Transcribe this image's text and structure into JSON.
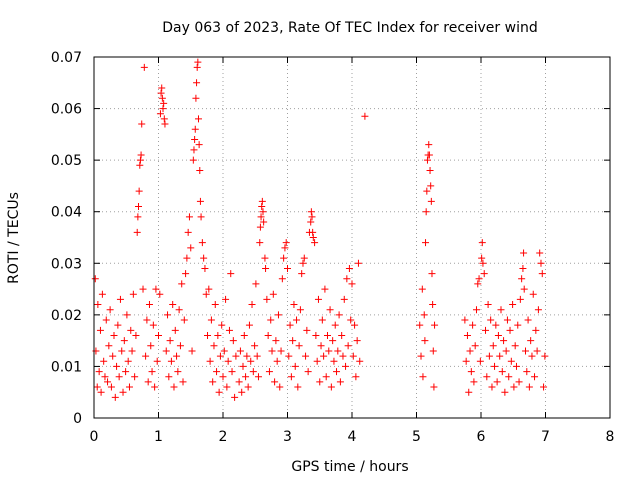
{
  "chart_data": {
    "type": "scatter",
    "title": "Day 063 of 2023, Rate Of TEC Index for receiver wind",
    "xlabel": "GPS time / hours",
    "ylabel": "ROTI / TECUs",
    "xlim": [
      0,
      8
    ],
    "ylim": [
      0,
      0.07
    ],
    "xticks": [
      "0",
      "1",
      "2",
      "3",
      "4",
      "5",
      "6",
      "7",
      "8"
    ],
    "yticks": [
      "0",
      "0.01",
      "0.02",
      "0.03",
      "0.04",
      "0.05",
      "0.06",
      "0.07"
    ],
    "grid": true,
    "marker": "plus",
    "color": "#ff0000",
    "series": [
      {
        "points": [
          [
            0.02,
            0.027
          ],
          [
            0.03,
            0.013
          ],
          [
            0.05,
            0.006
          ],
          [
            0.06,
            0.022
          ],
          [
            0.08,
            0.009
          ],
          [
            0.1,
            0.017
          ],
          [
            0.11,
            0.005
          ],
          [
            0.13,
            0.024
          ],
          [
            0.15,
            0.011
          ],
          [
            0.17,
            0.008
          ],
          [
            0.19,
            0.019
          ],
          [
            0.21,
            0.007
          ],
          [
            0.23,
            0.014
          ],
          [
            0.25,
            0.021
          ],
          [
            0.27,
            0.006
          ],
          [
            0.29,
            0.012
          ],
          [
            0.31,
            0.016
          ],
          [
            0.33,
            0.004
          ],
          [
            0.35,
            0.01
          ],
          [
            0.37,
            0.018
          ],
          [
            0.39,
            0.008
          ],
          [
            0.41,
            0.023
          ],
          [
            0.43,
            0.013
          ],
          [
            0.45,
            0.005
          ],
          [
            0.47,
            0.015
          ],
          [
            0.49,
            0.009
          ],
          [
            0.51,
            0.02
          ],
          [
            0.53,
            0.011
          ],
          [
            0.55,
            0.006
          ],
          [
            0.57,
            0.017
          ],
          [
            0.59,
            0.013
          ],
          [
            0.61,
            0.024
          ],
          [
            0.63,
            0.008
          ],
          [
            0.65,
            0.016
          ],
          [
            0.67,
            0.036
          ],
          [
            0.68,
            0.039
          ],
          [
            0.69,
            0.041
          ],
          [
            0.7,
            0.044
          ],
          [
            0.71,
            0.049
          ],
          [
            0.72,
            0.05
          ],
          [
            0.73,
            0.051
          ],
          [
            0.74,
            0.057
          ],
          [
            0.76,
            0.025
          ],
          [
            0.78,
            0.068
          ],
          [
            0.8,
            0.012
          ],
          [
            0.82,
            0.019
          ],
          [
            0.84,
            0.007
          ],
          [
            0.86,
            0.022
          ],
          [
            0.88,
            0.014
          ],
          [
            0.9,
            0.009
          ],
          [
            0.92,
            0.018
          ],
          [
            0.94,
            0.006
          ],
          [
            0.96,
            0.025
          ],
          [
            0.98,
            0.011
          ],
          [
            1.0,
            0.016
          ],
          [
            1.02,
            0.024
          ],
          [
            1.03,
            0.059
          ],
          [
            1.04,
            0.063
          ],
          [
            1.05,
            0.064
          ],
          [
            1.06,
            0.062
          ],
          [
            1.07,
            0.06
          ],
          [
            1.08,
            0.061
          ],
          [
            1.09,
            0.058
          ],
          [
            1.1,
            0.057
          ],
          [
            1.12,
            0.013
          ],
          [
            1.14,
            0.02
          ],
          [
            1.16,
            0.008
          ],
          [
            1.18,
            0.015
          ],
          [
            1.2,
            0.011
          ],
          [
            1.22,
            0.022
          ],
          [
            1.24,
            0.006
          ],
          [
            1.26,
            0.017
          ],
          [
            1.28,
            0.012
          ],
          [
            1.3,
            0.009
          ],
          [
            1.32,
            0.021
          ],
          [
            1.34,
            0.014
          ],
          [
            1.36,
            0.026
          ],
          [
            1.38,
            0.007
          ],
          [
            1.4,
            0.019
          ],
          [
            1.42,
            0.028
          ],
          [
            1.44,
            0.031
          ],
          [
            1.46,
            0.036
          ],
          [
            1.48,
            0.039
          ],
          [
            1.5,
            0.033
          ],
          [
            1.52,
            0.013
          ],
          [
            1.54,
            0.05
          ],
          [
            1.55,
            0.052
          ],
          [
            1.56,
            0.054
          ],
          [
            1.57,
            0.056
          ],
          [
            1.58,
            0.062
          ],
          [
            1.59,
            0.065
          ],
          [
            1.6,
            0.068
          ],
          [
            1.61,
            0.069
          ],
          [
            1.62,
            0.058
          ],
          [
            1.63,
            0.053
          ],
          [
            1.64,
            0.048
          ],
          [
            1.65,
            0.042
          ],
          [
            1.66,
            0.039
          ],
          [
            1.68,
            0.034
          ],
          [
            1.7,
            0.031
          ],
          [
            1.72,
            0.029
          ],
          [
            1.74,
            0.024
          ],
          [
            1.76,
            0.016
          ],
          [
            1.78,
            0.025
          ],
          [
            1.8,
            0.011
          ],
          [
            1.82,
            0.019
          ],
          [
            1.84,
            0.007
          ],
          [
            1.86,
            0.014
          ],
          [
            1.88,
            0.022
          ],
          [
            1.9,
            0.009
          ],
          [
            1.92,
            0.016
          ],
          [
            1.94,
            0.005
          ],
          [
            1.96,
            0.012
          ],
          [
            1.98,
            0.018
          ],
          [
            2.0,
            0.008
          ],
          [
            2.02,
            0.013
          ],
          [
            2.04,
            0.023
          ],
          [
            2.06,
            0.006
          ],
          [
            2.08,
            0.011
          ],
          [
            2.1,
            0.017
          ],
          [
            2.12,
            0.028
          ],
          [
            2.14,
            0.009
          ],
          [
            2.16,
            0.015
          ],
          [
            2.18,
            0.004
          ],
          [
            2.2,
            0.012
          ],
          [
            2.25,
            0.007
          ],
          [
            2.27,
            0.013
          ],
          [
            2.29,
            0.005
          ],
          [
            2.31,
            0.01
          ],
          [
            2.33,
            0.016
          ],
          [
            2.35,
            0.008
          ],
          [
            2.37,
            0.012
          ],
          [
            2.39,
            0.006
          ],
          [
            2.41,
            0.018
          ],
          [
            2.43,
            0.011
          ],
          [
            2.45,
            0.022
          ],
          [
            2.47,
            0.009
          ],
          [
            2.49,
            0.014
          ],
          [
            2.51,
            0.026
          ],
          [
            2.53,
            0.012
          ],
          [
            2.55,
            0.008
          ],
          [
            2.57,
            0.034
          ],
          [
            2.58,
            0.037
          ],
          [
            2.59,
            0.039
          ],
          [
            2.6,
            0.041
          ],
          [
            2.61,
            0.042
          ],
          [
            2.62,
            0.04
          ],
          [
            2.63,
            0.038
          ],
          [
            2.65,
            0.031
          ],
          [
            2.66,
            0.029
          ],
          [
            2.68,
            0.023
          ],
          [
            2.7,
            0.016
          ],
          [
            2.72,
            0.009
          ],
          [
            2.74,
            0.019
          ],
          [
            2.76,
            0.013
          ],
          [
            2.78,
            0.024
          ],
          [
            2.8,
            0.007
          ],
          [
            2.82,
            0.015
          ],
          [
            2.84,
            0.011
          ],
          [
            2.86,
            0.02
          ],
          [
            2.88,
            0.006
          ],
          [
            2.9,
            0.013
          ],
          [
            2.92,
            0.027
          ],
          [
            2.94,
            0.031
          ],
          [
            2.96,
            0.033
          ],
          [
            2.98,
            0.034
          ],
          [
            3.0,
            0.029
          ],
          [
            3.02,
            0.012
          ],
          [
            3.04,
            0.018
          ],
          [
            3.06,
            0.008
          ],
          [
            3.08,
            0.015
          ],
          [
            3.1,
            0.022
          ],
          [
            3.12,
            0.01
          ],
          [
            3.14,
            0.019
          ],
          [
            3.16,
            0.006
          ],
          [
            3.18,
            0.014
          ],
          [
            3.2,
            0.021
          ],
          [
            3.22,
            0.028
          ],
          [
            3.24,
            0.03
          ],
          [
            3.26,
            0.031
          ],
          [
            3.28,
            0.012
          ],
          [
            3.3,
            0.017
          ],
          [
            3.32,
            0.009
          ],
          [
            3.34,
            0.036
          ],
          [
            3.36,
            0.038
          ],
          [
            3.37,
            0.04
          ],
          [
            3.38,
            0.039
          ],
          [
            3.39,
            0.036
          ],
          [
            3.4,
            0.035
          ],
          [
            3.42,
            0.034
          ],
          [
            3.44,
            0.016
          ],
          [
            3.46,
            0.011
          ],
          [
            3.48,
            0.023
          ],
          [
            3.5,
            0.007
          ],
          [
            3.52,
            0.014
          ],
          [
            3.54,
            0.019
          ],
          [
            3.56,
            0.012
          ],
          [
            3.58,
            0.025
          ],
          [
            3.6,
            0.008
          ],
          [
            3.62,
            0.016
          ],
          [
            3.64,
            0.013
          ],
          [
            3.66,
            0.021
          ],
          [
            3.68,
            0.006
          ],
          [
            3.7,
            0.015
          ],
          [
            3.72,
            0.011
          ],
          [
            3.74,
            0.018
          ],
          [
            3.76,
            0.009
          ],
          [
            3.78,
            0.013
          ],
          [
            3.8,
            0.02
          ],
          [
            3.82,
            0.007
          ],
          [
            3.84,
            0.016
          ],
          [
            3.86,
            0.012
          ],
          [
            3.88,
            0.023
          ],
          [
            3.9,
            0.01
          ],
          [
            3.92,
            0.027
          ],
          [
            3.94,
            0.014
          ],
          [
            3.96,
            0.029
          ],
          [
            3.98,
            0.019
          ],
          [
            4.0,
            0.026
          ],
          [
            4.02,
            0.012
          ],
          [
            4.04,
            0.018
          ],
          [
            4.06,
            0.008
          ],
          [
            4.08,
            0.015
          ],
          [
            4.1,
            0.03
          ],
          [
            4.12,
            0.011
          ],
          [
            4.2,
            0.0585
          ],
          [
            5.05,
            0.018
          ],
          [
            5.07,
            0.012
          ],
          [
            5.09,
            0.025
          ],
          [
            5.1,
            0.008
          ],
          [
            5.12,
            0.02
          ],
          [
            5.13,
            0.015
          ],
          [
            5.14,
            0.034
          ],
          [
            5.15,
            0.04
          ],
          [
            5.16,
            0.044
          ],
          [
            5.17,
            0.05
          ],
          [
            5.18,
            0.051
          ],
          [
            5.19,
            0.053
          ],
          [
            5.2,
            0.051
          ],
          [
            5.21,
            0.048
          ],
          [
            5.22,
            0.045
          ],
          [
            5.23,
            0.042
          ],
          [
            5.24,
            0.028
          ],
          [
            5.25,
            0.022
          ],
          [
            5.26,
            0.013
          ],
          [
            5.27,
            0.006
          ],
          [
            5.28,
            0.018
          ],
          [
            5.75,
            0.019
          ],
          [
            5.77,
            0.011
          ],
          [
            5.79,
            0.016
          ],
          [
            5.81,
            0.005
          ],
          [
            5.83,
            0.013
          ],
          [
            5.85,
            0.009
          ],
          [
            5.87,
            0.018
          ],
          [
            5.89,
            0.007
          ],
          [
            5.91,
            0.014
          ],
          [
            5.93,
            0.021
          ],
          [
            5.95,
            0.026
          ],
          [
            5.97,
            0.027
          ],
          [
            5.99,
            0.011
          ],
          [
            6.01,
            0.031
          ],
          [
            6.02,
            0.034
          ],
          [
            6.03,
            0.03
          ],
          [
            6.05,
            0.028
          ],
          [
            6.07,
            0.017
          ],
          [
            6.09,
            0.008
          ],
          [
            6.11,
            0.022
          ],
          [
            6.13,
            0.012
          ],
          [
            6.15,
            0.019
          ],
          [
            6.17,
            0.006
          ],
          [
            6.19,
            0.014
          ],
          [
            6.21,
            0.01
          ],
          [
            6.23,
            0.018
          ],
          [
            6.25,
            0.007
          ],
          [
            6.27,
            0.016
          ],
          [
            6.29,
            0.012
          ],
          [
            6.31,
            0.021
          ],
          [
            6.33,
            0.009
          ],
          [
            6.35,
            0.015
          ],
          [
            6.37,
            0.005
          ],
          [
            6.39,
            0.013
          ],
          [
            6.41,
            0.019
          ],
          [
            6.43,
            0.008
          ],
          [
            6.45,
            0.017
          ],
          [
            6.47,
            0.011
          ],
          [
            6.49,
            0.022
          ],
          [
            6.51,
            0.006
          ],
          [
            6.53,
            0.014
          ],
          [
            6.55,
            0.01
          ],
          [
            6.57,
            0.018
          ],
          [
            6.59,
            0.007
          ],
          [
            6.61,
            0.023
          ],
          [
            6.63,
            0.027
          ],
          [
            6.65,
            0.029
          ],
          [
            6.66,
            0.032
          ],
          [
            6.67,
            0.025
          ],
          [
            6.69,
            0.013
          ],
          [
            6.71,
            0.009
          ],
          [
            6.73,
            0.019
          ],
          [
            6.75,
            0.006
          ],
          [
            6.77,
            0.015
          ],
          [
            6.79,
            0.012
          ],
          [
            6.81,
            0.024
          ],
          [
            6.83,
            0.008
          ],
          [
            6.85,
            0.017
          ],
          [
            6.87,
            0.013
          ],
          [
            6.89,
            0.021
          ],
          [
            6.91,
            0.032
          ],
          [
            6.93,
            0.03
          ],
          [
            6.95,
            0.028
          ],
          [
            6.97,
            0.006
          ],
          [
            6.99,
            0.012
          ]
        ]
      }
    ]
  }
}
